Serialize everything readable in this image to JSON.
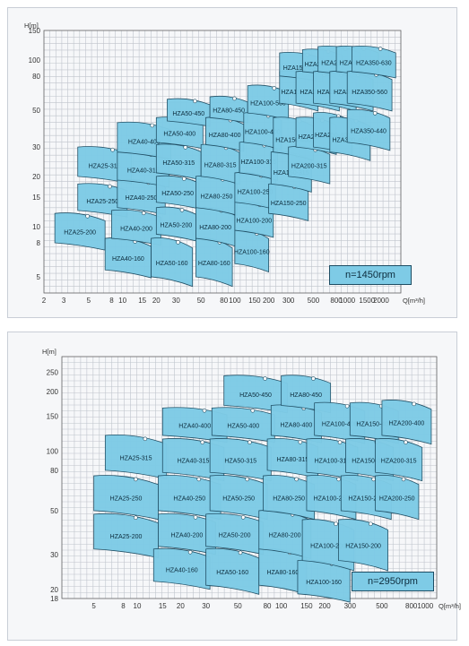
{
  "chart_data": [
    {
      "type": "area",
      "speed_label": "n=1450rpm",
      "ylabel": "H[m]",
      "xlabel": "Q[m³/h]",
      "x_scale": "log",
      "y_scale": "log",
      "xlim": [
        2,
        3000
      ],
      "ylim": [
        4,
        150
      ],
      "x_ticks": [
        "2",
        "3",
        "5",
        "8",
        "10",
        "15",
        "20",
        "30",
        "50",
        "80",
        "100",
        "150",
        "200",
        "300",
        "500",
        "800",
        "1000",
        "1500",
        "2000"
      ],
      "y_ticks": [
        "150",
        "100",
        "80",
        "50",
        "30",
        "20",
        "15",
        "10",
        "8",
        "5"
      ],
      "grid": true,
      "curves": [
        {
          "name": "HZA25-200",
          "q": [
            2.5,
            7
          ],
          "h": [
            8,
            12
          ]
        },
        {
          "name": "HZA25-250",
          "q": [
            4,
            11
          ],
          "h": [
            12.5,
            18
          ]
        },
        {
          "name": "HZA25-315",
          "q": [
            4,
            12
          ],
          "h": [
            20,
            30
          ]
        },
        {
          "name": "HZA40-160",
          "q": [
            7,
            18
          ],
          "h": [
            5.5,
            8.5
          ]
        },
        {
          "name": "HZA40-200",
          "q": [
            8,
            22
          ],
          "h": [
            8.5,
            12.5
          ]
        },
        {
          "name": "HZA40-250",
          "q": [
            9,
            24
          ],
          "h": [
            13,
            19
          ]
        },
        {
          "name": "HZA40-315",
          "q": [
            9,
            26
          ],
          "h": [
            19,
            28
          ]
        },
        {
          "name": "HZA40-400",
          "q": [
            9,
            27
          ],
          "h": [
            28,
            42
          ]
        },
        {
          "name": "HZA50-160",
          "q": [
            18,
            42
          ],
          "h": [
            5,
            8.5
          ]
        },
        {
          "name": "HZA50-200",
          "q": [
            20,
            45
          ],
          "h": [
            9,
            13
          ]
        },
        {
          "name": "HZA50-250",
          "q": [
            20,
            48
          ],
          "h": [
            14,
            20
          ]
        },
        {
          "name": "HZA50-315",
          "q": [
            20,
            50
          ],
          "h": [
            21,
            31
          ]
        },
        {
          "name": "HZA50-400",
          "q": [
            20,
            52
          ],
          "h": [
            32,
            45
          ]
        },
        {
          "name": "HZA50-450",
          "q": [
            25,
            60
          ],
          "h": [
            43,
            58
          ]
        },
        {
          "name": "HZA80-160",
          "q": [
            45,
            95
          ],
          "h": [
            5,
            8.5
          ]
        },
        {
          "name": "HZA80-200",
          "q": [
            45,
            100
          ],
          "h": [
            8.5,
            13
          ]
        },
        {
          "name": "HZA80-250",
          "q": [
            45,
            105
          ],
          "h": [
            13,
            20
          ]
        },
        {
          "name": "HZA80-315",
          "q": [
            50,
            110
          ],
          "h": [
            20,
            31
          ]
        },
        {
          "name": "HZA80-400",
          "q": [
            55,
            120
          ],
          "h": [
            31,
            45
          ]
        },
        {
          "name": "HZA80-450",
          "q": [
            60,
            130
          ],
          "h": [
            45,
            60
          ]
        },
        {
          "name": "HZA100-160",
          "q": [
            100,
            200
          ],
          "h": [
            6,
            9.5
          ]
        },
        {
          "name": "HZA100-200",
          "q": [
            100,
            220
          ],
          "h": [
            9.5,
            14
          ]
        },
        {
          "name": "HZA100-250",
          "q": [
            100,
            230
          ],
          "h": [
            14,
            21
          ]
        },
        {
          "name": "HZA100-315",
          "q": [
            110,
            240
          ],
          "h": [
            21,
            32
          ]
        },
        {
          "name": "HZA100-400",
          "q": [
            120,
            260
          ],
          "h": [
            32,
            48
          ]
        },
        {
          "name": "HZA100-560",
          "q": [
            130,
            300
          ],
          "h": [
            48,
            70
          ]
        },
        {
          "name": "HZA150-250",
          "q": [
            200,
            450
          ],
          "h": [
            12,
            18
          ]
        },
        {
          "name": "HZA150-315",
          "q": [
            210,
            480
          ],
          "h": [
            18,
            28
          ]
        },
        {
          "name": "HZA150-400",
          "q": [
            220,
            500
          ],
          "h": [
            28,
            45
          ]
        },
        {
          "name": "HZA150-560",
          "q": [
            250,
            550
          ],
          "h": [
            55,
            85
          ]
        },
        {
          "name": "HZA150-630",
          "q": [
            250,
            600
          ],
          "h": [
            80,
            110
          ]
        },
        {
          "name": "HZA200-315",
          "q": [
            300,
            700
          ],
          "h": [
            20,
            30
          ]
        },
        {
          "name": "HZA200-400",
          "q": [
            350,
            800
          ],
          "h": [
            30,
            45
          ]
        },
        {
          "name": "HZA200-560",
          "q": [
            350,
            850
          ],
          "h": [
            55,
            85
          ]
        },
        {
          "name": "HZA200-630",
          "q": [
            400,
            900
          ],
          "h": [
            85,
            115
          ]
        },
        {
          "name": "HZA250-400",
          "q": [
            500,
            1100
          ],
          "h": [
            30,
            48
          ]
        },
        {
          "name": "HZA250-560",
          "q": [
            500,
            1200
          ],
          "h": [
            55,
            85
          ]
        },
        {
          "name": "HZA250-630",
          "q": [
            550,
            1300
          ],
          "h": [
            85,
            120
          ]
        },
        {
          "name": "HZA300-400",
          "q": [
            700,
            1600
          ],
          "h": [
            28,
            45
          ]
        },
        {
          "name": "HZA300-560",
          "q": [
            700,
            1700
          ],
          "h": [
            55,
            85
          ]
        },
        {
          "name": "HZA300-630",
          "q": [
            800,
            1900
          ],
          "h": [
            85,
            120
          ]
        },
        {
          "name": "HZA350-440",
          "q": [
            1000,
            2400
          ],
          "h": [
            32,
            50
          ]
        },
        {
          "name": "HZA350-560",
          "q": [
            1000,
            2500
          ],
          "h": [
            55,
            85
          ]
        },
        {
          "name": "HZA350-630",
          "q": [
            1100,
            2700
          ],
          "h": [
            85,
            120
          ]
        }
      ]
    },
    {
      "type": "area",
      "speed_label": "n=2950rpm",
      "ylabel": "H[m]",
      "xlabel": "Q[m³/h]",
      "x_scale": "log",
      "y_scale": "log",
      "xlim": [
        3,
        1200
      ],
      "ylim": [
        18,
        300
      ],
      "x_ticks": [
        "5",
        "8",
        "10",
        "15",
        "20",
        "30",
        "50",
        "80",
        "100",
        "150",
        "200",
        "300",
        "500",
        "800",
        "1000"
      ],
      "y_ticks": [
        "250",
        "200",
        "150",
        "100",
        "80",
        "50",
        "30",
        "20",
        "18"
      ],
      "grid": true,
      "curves": [
        {
          "name": "HZA25-200",
          "q": [
            5,
            14
          ],
          "h": [
            32,
            48
          ]
        },
        {
          "name": "HZA25-250",
          "q": [
            5,
            14
          ],
          "h": [
            50,
            75
          ]
        },
        {
          "name": "HZA25-315",
          "q": [
            6,
            16
          ],
          "h": [
            80,
            120
          ]
        },
        {
          "name": "HZA40-160",
          "q": [
            13,
            32
          ],
          "h": [
            22,
            32
          ]
        },
        {
          "name": "HZA40-200",
          "q": [
            14,
            35
          ],
          "h": [
            33,
            48
          ]
        },
        {
          "name": "HZA40-250",
          "q": [
            14,
            38
          ],
          "h": [
            50,
            75
          ]
        },
        {
          "name": "HZA40-315",
          "q": [
            15,
            40
          ],
          "h": [
            78,
            115
          ]
        },
        {
          "name": "HZA40-400",
          "q": [
            15,
            42
          ],
          "h": [
            120,
            165
          ]
        },
        {
          "name": "HZA50-160",
          "q": [
            30,
            70
          ],
          "h": [
            21,
            32
          ]
        },
        {
          "name": "HZA50-200",
          "q": [
            30,
            75
          ],
          "h": [
            33,
            48
          ]
        },
        {
          "name": "HZA50-250",
          "q": [
            32,
            80
          ],
          "h": [
            50,
            75
          ]
        },
        {
          "name": "HZA50-315",
          "q": [
            32,
            85
          ],
          "h": [
            78,
            115
          ]
        },
        {
          "name": "HZA50-400",
          "q": [
            33,
            90
          ],
          "h": [
            120,
            165
          ]
        },
        {
          "name": "HZA50-450",
          "q": [
            40,
            110
          ],
          "h": [
            170,
            240
          ]
        },
        {
          "name": "HZA80-160",
          "q": [
            70,
            150
          ],
          "h": [
            21,
            32
          ]
        },
        {
          "name": "HZA80-200",
          "q": [
            70,
            160
          ],
          "h": [
            32,
            50
          ]
        },
        {
          "name": "HZA80-250",
          "q": [
            75,
            170
          ],
          "h": [
            50,
            75
          ]
        },
        {
          "name": "HZA80-315",
          "q": [
            80,
            180
          ],
          "h": [
            80,
            115
          ]
        },
        {
          "name": "HZA80-400",
          "q": [
            85,
            190
          ],
          "h": [
            120,
            170
          ]
        },
        {
          "name": "HZA80-450",
          "q": [
            100,
            220
          ],
          "h": [
            170,
            240
          ]
        },
        {
          "name": "HZA100-160",
          "q": [
            130,
            300
          ],
          "h": [
            19,
            28
          ]
        },
        {
          "name": "HZA100-200",
          "q": [
            140,
            320
          ],
          "h": [
            28,
            45
          ]
        },
        {
          "name": "HZA100-250",
          "q": [
            150,
            330
          ],
          "h": [
            50,
            75
          ]
        },
        {
          "name": "HZA100-315",
          "q": [
            150,
            340
          ],
          "h": [
            78,
            115
          ]
        },
        {
          "name": "HZA100-400",
          "q": [
            170,
            380
          ],
          "h": [
            120,
            175
          ]
        },
        {
          "name": "HZA150-200",
          "q": [
            250,
            550
          ],
          "h": [
            28,
            45
          ]
        },
        {
          "name": "HZA150-250",
          "q": [
            260,
            580
          ],
          "h": [
            50,
            75
          ]
        },
        {
          "name": "HZA150-315",
          "q": [
            280,
            600
          ],
          "h": [
            78,
            115
          ]
        },
        {
          "name": "HZA150-400",
          "q": [
            300,
            650
          ],
          "h": [
            120,
            175
          ]
        },
        {
          "name": "HZA200-250",
          "q": [
            450,
            900
          ],
          "h": [
            50,
            75
          ]
        },
        {
          "name": "HZA200-315",
          "q": [
            450,
            950
          ],
          "h": [
            78,
            115
          ]
        },
        {
          "name": "HZA200-400",
          "q": [
            500,
            1100
          ],
          "h": [
            120,
            180
          ]
        }
      ]
    }
  ]
}
